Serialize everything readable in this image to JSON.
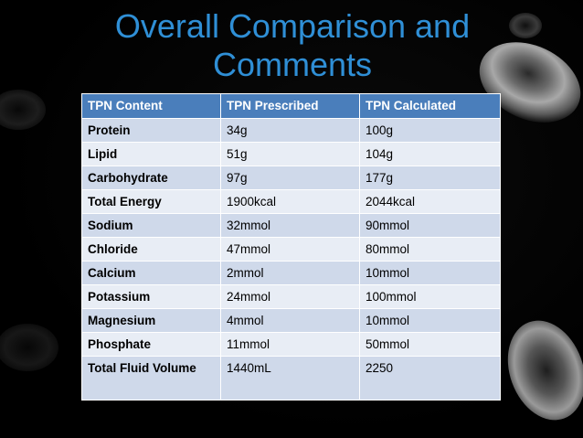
{
  "slide": {
    "title_line1": "Overall Comparison and",
    "title_line2": "Comments"
  },
  "table": {
    "headers": [
      "TPN Content",
      "TPN Prescribed",
      "TPN Calculated"
    ],
    "rows": [
      [
        "Protein",
        "34g",
        "100g"
      ],
      [
        "Lipid",
        "51g",
        "104g"
      ],
      [
        "Carbohydrate",
        "97g",
        "177g"
      ],
      [
        "Total Energy",
        "1900kcal",
        "2044kcal"
      ],
      [
        "Sodium",
        "32mmol",
        "90mmol"
      ],
      [
        "Chloride",
        "47mmol",
        "80mmol"
      ],
      [
        "Calcium",
        "2mmol",
        "10mmol"
      ],
      [
        "Potassium",
        "24mmol",
        "100mmol"
      ],
      [
        "Magnesium",
        "4mmol",
        "10mmol"
      ],
      [
        "Phosphate",
        "11mmol",
        "50mmol"
      ],
      [
        "Total Fluid Volume",
        "1440mL",
        "2250"
      ]
    ]
  },
  "colors": {
    "title": "#2f8fd6",
    "header_bg": "#4a7ebb",
    "row_odd": "#cfd9ea",
    "row_even": "#e8edf5",
    "background": "#000000"
  },
  "decorations": {
    "background_image": "red-blood-cells-grayscale"
  }
}
